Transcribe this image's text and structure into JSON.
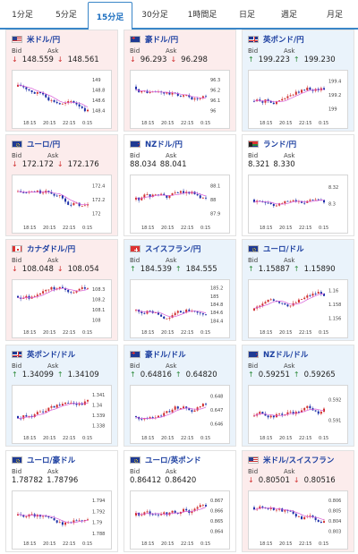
{
  "tabs": [
    {
      "label": "1分足",
      "active": false
    },
    {
      "label": "5分足",
      "active": false
    },
    {
      "label": "15分足",
      "active": true
    },
    {
      "label": "30分足",
      "active": false
    },
    {
      "label": "1時間足",
      "active": false
    },
    {
      "label": "日足",
      "active": false
    },
    {
      "label": "週足",
      "active": false
    },
    {
      "label": "月足",
      "active": false
    }
  ],
  "quote_labels": {
    "bid": "Bid",
    "ask": "Ask"
  },
  "colors": {
    "up_candle": "#d03030",
    "down_candle": "#1c2fa8",
    "ma_line": "#d85ad8",
    "down_bg": "#fcecec",
    "up_bg": "#eaf3fb"
  },
  "pairs": [
    {
      "name": "米ドル/円",
      "flag": "us-flag-icon",
      "trend": "down",
      "bid": "148.559",
      "ask": "148.561",
      "chart_data": {
        "type": "candlestick",
        "x_ticks": [
          "18:15",
          "20:15",
          "22:15",
          "0:15"
        ],
        "y_ticks": [
          149,
          148.8,
          148.6,
          148.4
        ],
        "ylim": [
          148.3,
          149.1
        ]
      }
    },
    {
      "name": "豪ドル/円",
      "flag": "au-flag-icon",
      "trend": "down",
      "bid": "96.293",
      "ask": "96.298",
      "chart_data": {
        "type": "candlestick",
        "x_ticks": [
          "18:15",
          "20:15",
          "22:15",
          "0:15"
        ],
        "y_ticks": [
          96.3,
          96.2,
          96.1,
          96
        ],
        "ylim": [
          95.95,
          96.35
        ]
      }
    },
    {
      "name": "英ポンド/円",
      "flag": "gb-flag-icon",
      "trend": "up",
      "bid": "199.223",
      "ask": "199.230",
      "chart_data": {
        "type": "candlestick",
        "x_ticks": [
          "18:15",
          "20:15",
          "22:15",
          "0:15"
        ],
        "y_ticks": [
          199.4,
          199.2,
          199
        ],
        "ylim": [
          198.9,
          199.5
        ]
      }
    },
    {
      "name": "ユーロ/円",
      "flag": "eu-flag-icon",
      "trend": "down",
      "bid": "172.172",
      "ask": "172.176",
      "chart_data": {
        "type": "candlestick",
        "x_ticks": [
          "18:15",
          "20:15",
          "22:15",
          "0:15"
        ],
        "y_ticks": [
          172.4,
          172.2,
          172
        ],
        "ylim": [
          171.9,
          172.5
        ]
      }
    },
    {
      "name": "NZドル/円",
      "flag": "nz-flag-icon",
      "trend": "flat",
      "bid": "88.034",
      "ask": "88.041",
      "chart_data": {
        "type": "candlestick",
        "x_ticks": [
          "18:15",
          "20:15",
          "22:15",
          "0:15"
        ],
        "y_ticks": [
          88.1,
          88,
          87.9
        ],
        "ylim": [
          87.85,
          88.15
        ]
      }
    },
    {
      "name": "ランド/円",
      "flag": "za-flag-icon",
      "trend": "flat",
      "bid": "8.321",
      "ask": "8.330",
      "chart_data": {
        "type": "candlestick",
        "x_ticks": [
          "18:15",
          "20:15",
          "22:15",
          "0:15"
        ],
        "y_ticks": [
          8.32,
          8.3
        ],
        "ylim": [
          8.28,
          8.33
        ]
      }
    },
    {
      "name": "カナダドル/円",
      "flag": "ca-flag-icon",
      "trend": "down",
      "bid": "108.048",
      "ask": "108.054",
      "chart_data": {
        "type": "candlestick",
        "x_ticks": [
          "18:15",
          "20:15",
          "22:15",
          "0:15"
        ],
        "y_ticks": [
          108.3,
          108.2,
          108.1,
          108
        ],
        "ylim": [
          107.95,
          108.35
        ]
      }
    },
    {
      "name": "スイスフラン/円",
      "flag": "ch-flag-icon",
      "trend": "up",
      "bid": "184.539",
      "ask": "184.555",
      "chart_data": {
        "type": "candlestick",
        "x_ticks": [
          "18:15",
          "20:15",
          "22:15",
          "0:15"
        ],
        "y_ticks": [
          185.2,
          185,
          184.8,
          184.6,
          184.4
        ],
        "ylim": [
          184.3,
          185.3
        ]
      }
    },
    {
      "name": "ユーロ/ドル",
      "flag": "eu-flag-icon",
      "trend": "up",
      "bid": "1.15887",
      "ask": "1.15890",
      "chart_data": {
        "type": "candlestick",
        "x_ticks": [
          "18:15",
          "20:15",
          "22:15",
          "0:15"
        ],
        "y_ticks": [
          1.16,
          1.158,
          1.156
        ],
        "ylim": [
          1.155,
          1.161
        ]
      }
    },
    {
      "name": "英ポンド/ドル",
      "flag": "gb-flag-icon",
      "trend": "up",
      "bid": "1.34099",
      "ask": "1.34109",
      "chart_data": {
        "type": "candlestick",
        "x_ticks": [
          "18:15",
          "20:15",
          "22:15",
          "0:15"
        ],
        "y_ticks": [
          1.341,
          1.34,
          1.339,
          1.338
        ],
        "ylim": [
          1.3375,
          1.3415
        ]
      }
    },
    {
      "name": "豪ドル/ドル",
      "flag": "au-flag-icon",
      "trend": "up",
      "bid": "0.64816",
      "ask": "0.64820",
      "chart_data": {
        "type": "candlestick",
        "x_ticks": [
          "18:15",
          "20:15",
          "22:15",
          "0:15"
        ],
        "y_ticks": [
          0.648,
          0.647,
          0.646
        ],
        "ylim": [
          0.6455,
          0.6485
        ]
      }
    },
    {
      "name": "NZドル/ドル",
      "flag": "nz-flag-icon",
      "trend": "up",
      "bid": "0.59251",
      "ask": "0.59265",
      "chart_data": {
        "type": "candlestick",
        "x_ticks": [
          "18:15",
          "20:15",
          "22:15",
          "0:15"
        ],
        "y_ticks": [
          0.592,
          0.591
        ],
        "ylim": [
          0.5905,
          0.5925
        ]
      }
    },
    {
      "name": "ユーロ/豪ドル",
      "flag": "eu-flag-icon",
      "trend": "flat",
      "bid": "1.78782",
      "ask": "1.78796",
      "chart_data": {
        "type": "candlestick",
        "x_ticks": [
          "18:15",
          "20:15",
          "22:15",
          "0:15"
        ],
        "y_ticks": [
          1.794,
          1.792,
          1.79,
          1.788
        ],
        "ylim": [
          1.7875,
          1.795
        ]
      }
    },
    {
      "name": "ユーロ/英ポンド",
      "flag": "eu-flag-icon",
      "trend": "flat",
      "bid": "0.86412",
      "ask": "0.86420",
      "chart_data": {
        "type": "candlestick",
        "x_ticks": [
          "18:15",
          "20:15",
          "22:15",
          "0:15"
        ],
        "y_ticks": [
          0.867,
          0.866,
          0.865,
          0.864
        ],
        "ylim": [
          0.8635,
          0.8675
        ]
      }
    },
    {
      "name": "米ドル/スイスフラン",
      "flag": "us-flag-icon",
      "trend": "down",
      "bid": "0.80501",
      "ask": "0.80516",
      "chart_data": {
        "type": "candlestick",
        "x_ticks": [
          "18:15",
          "20:15",
          "22:15",
          "0:15"
        ],
        "y_ticks": [
          0.806,
          0.805,
          0.804,
          0.803
        ],
        "ylim": [
          0.8025,
          0.8065
        ]
      }
    }
  ]
}
